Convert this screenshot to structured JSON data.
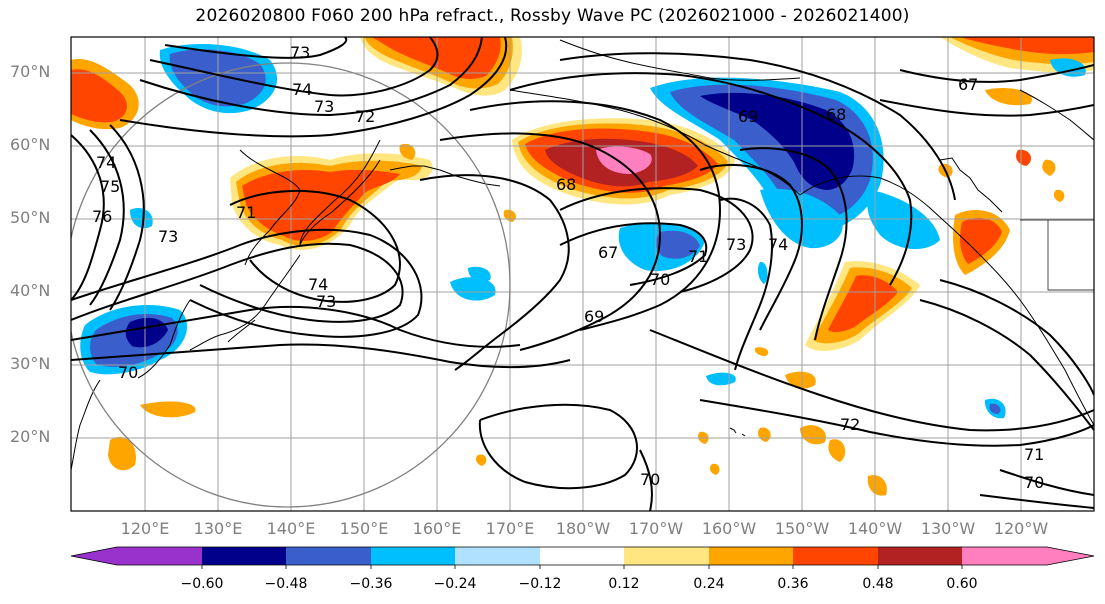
{
  "title": "2026020800 F060 200 hPa refract., Rossby Wave PC (2026021000 - 2026021400)",
  "latitude_labels": [
    "70°N",
    "60°N",
    "50°N",
    "40°N",
    "30°N",
    "20°N"
  ],
  "longitude_labels": [
    "120°E",
    "130°E",
    "140°E",
    "150°E",
    "160°E",
    "170°E",
    "180°W",
    "170°W",
    "160°W",
    "150°W",
    "140°W",
    "130°W",
    "120°W"
  ],
  "colorbar": {
    "tick_labels": [
      "−0.60",
      "−0.48",
      "−0.36",
      "−0.24",
      "−0.12",
      "0.12",
      "0.24",
      "0.36",
      "0.48",
      "0.60"
    ],
    "colors": [
      "#9932cc",
      "#00008b",
      "#3a5fcd",
      "#00bfff",
      "#b0e2ff",
      "#ffffff",
      "#ffe680",
      "#ffa500",
      "#ff4500",
      "#b22222",
      "#ff7fbf"
    ]
  },
  "contour_labels": [
    "73",
    "74",
    "73",
    "72",
    "74",
    "75",
    "76",
    "71",
    "73",
    "74",
    "73",
    "70",
    "68",
    "67",
    "69",
    "70",
    "71",
    "73",
    "74",
    "69",
    "68",
    "67",
    "72",
    "71",
    "70",
    "70"
  ],
  "colors": {
    "contour": "#000000",
    "coast": "#000000",
    "grid": "#a0a0a0",
    "circle": "#808080"
  }
}
